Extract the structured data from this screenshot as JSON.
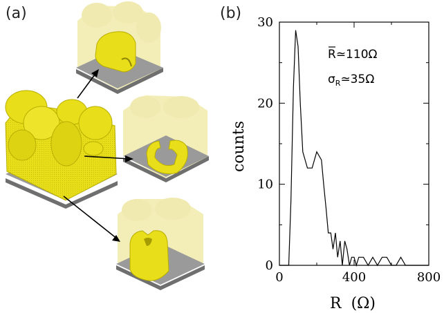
{
  "panels": {
    "a_label": "(a)",
    "b_label": "(b)"
  },
  "colors": {
    "grain": "#e8de1a",
    "grain_dark": "#b8ae00",
    "grain_faded": "#f3eeb8",
    "base_top": "#9a9a9a",
    "base_side": "#6f6f6f"
  },
  "stats": {
    "mean_symbol": "R",
    "mean_value": "≃110Ω",
    "sigma_symbol": "σ",
    "sigma_sub": "R",
    "sigma_value": "≃35Ω"
  },
  "chart_data": {
    "type": "line",
    "xlabel": "R  (Ω)",
    "ylabel": "counts",
    "xlim": [
      0,
      800
    ],
    "ylim": [
      0,
      30
    ],
    "xticks": [
      0,
      400,
      800
    ],
    "yticks": [
      0,
      10,
      20,
      30
    ],
    "series": [
      {
        "x": [
          -25,
          50,
          62,
          75,
          87,
          100,
          112,
          125,
          150,
          175,
          200,
          225,
          237,
          250,
          262,
          275,
          287,
          300,
          312,
          325,
          337,
          350,
          362,
          375,
          387,
          400,
          412,
          425,
          450,
          475,
          500,
          525,
          550,
          575,
          600,
          625,
          650,
          675,
          700,
          725,
          800
        ],
        "y": [
          0,
          0,
          8,
          22,
          29,
          27,
          20,
          14,
          12,
          12,
          14,
          13,
          10,
          7,
          4,
          4,
          2,
          4,
          1,
          3,
          0,
          3,
          2,
          0,
          1,
          1,
          0,
          1,
          1,
          0,
          1,
          0,
          1,
          1,
          0,
          0,
          1,
          0,
          0,
          0,
          0
        ]
      }
    ]
  }
}
